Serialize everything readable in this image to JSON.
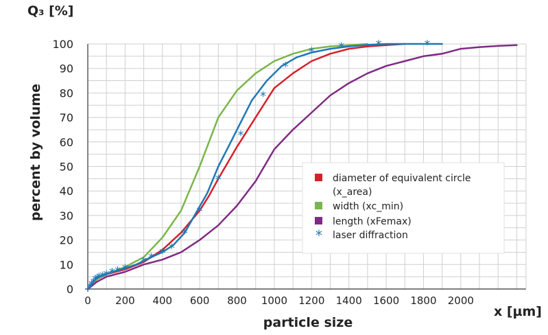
{
  "chart_data": {
    "type": "line",
    "title": "",
    "ylabel_top": "Q₃ [%]",
    "ylabel": "percent  by volume",
    "xlabel": "particle size",
    "xunit_label": "x [µm]",
    "xlim": [
      0,
      2350
    ],
    "ylim": [
      0,
      100
    ],
    "x_ticks": [
      0,
      200,
      400,
      600,
      800,
      1000,
      1200,
      1400,
      1600,
      1800,
      2000
    ],
    "y_ticks": [
      0,
      10,
      20,
      30,
      40,
      50,
      60,
      70,
      80,
      90,
      100
    ],
    "grid": true,
    "legend_position": "center-right",
    "series": [
      {
        "name": "diameter of equivalent circle\n(x_area)",
        "color": "#d6202a",
        "marker": "none",
        "x": [
          0,
          50,
          100,
          200,
          300,
          400,
          500,
          600,
          650,
          700,
          800,
          900,
          1000,
          1100,
          1200,
          1300,
          1400,
          1500,
          1600,
          1700
        ],
        "y": [
          0,
          4,
          6,
          8,
          11,
          16,
          23,
          32,
          38,
          45,
          58,
          70,
          82,
          88,
          93,
          96,
          98,
          99,
          99.5,
          100
        ]
      },
      {
        "name": "width (xc_min)",
        "color": "#7ab648",
        "marker": "none",
        "x": [
          0,
          50,
          100,
          200,
          300,
          400,
          500,
          600,
          700,
          800,
          900,
          1000,
          1100,
          1200,
          1300,
          1400,
          1500
        ],
        "y": [
          0,
          4,
          6,
          9,
          13,
          21,
          32,
          50,
          70,
          81,
          88,
          93,
          96,
          98,
          99,
          99.5,
          100
        ]
      },
      {
        "name": "length (xFemax)",
        "color": "#7f2a84",
        "marker": "none",
        "x": [
          0,
          50,
          100,
          200,
          300,
          400,
          500,
          600,
          700,
          800,
          900,
          1000,
          1100,
          1200,
          1300,
          1400,
          1500,
          1600,
          1700,
          1800,
          1900,
          2000,
          2100,
          2200,
          2300
        ],
        "y": [
          0,
          3,
          5,
          7,
          10,
          12,
          15,
          20,
          26,
          34,
          44,
          57,
          65,
          72,
          79,
          84,
          88,
          91,
          93,
          95,
          96,
          98,
          98.7,
          99.2,
          99.5
        ]
      },
      {
        "name": "laser diffraction",
        "color": "#1f78b4",
        "marker": "asterisk",
        "x": [
          5,
          10,
          20,
          30,
          40,
          50,
          60,
          80,
          100,
          130,
          160,
          200,
          260,
          300,
          340,
          400,
          460,
          520,
          580,
          640,
          700,
          760,
          820,
          880,
          960,
          1040,
          1120,
          1200,
          1300,
          1400,
          1500,
          1600,
          1700,
          1800,
          1900
        ],
        "y": [
          0,
          1,
          2,
          3,
          4,
          4.5,
          5,
          5.5,
          6,
          7,
          7.5,
          8.5,
          10,
          11.5,
          13,
          15,
          18,
          23,
          31,
          39,
          50,
          59,
          68,
          77,
          85,
          91,
          94.5,
          96.5,
          98,
          99,
          99.6,
          100,
          100,
          100,
          100
        ],
        "marker_x": [
          10,
          20,
          30,
          40,
          50,
          60,
          80,
          100,
          130,
          160,
          200,
          300,
          340,
          400,
          450,
          520,
          600,
          700,
          820,
          940,
          1060,
          1200,
          1360,
          1560,
          1820
        ],
        "marker_y": [
          1,
          2,
          3,
          4,
          4.5,
          5,
          5.5,
          6,
          7,
          7.5,
          8.5,
          11.5,
          13,
          15,
          17,
          23,
          32,
          45,
          63,
          79,
          91,
          97,
          99,
          100,
          100
        ]
      }
    ]
  }
}
